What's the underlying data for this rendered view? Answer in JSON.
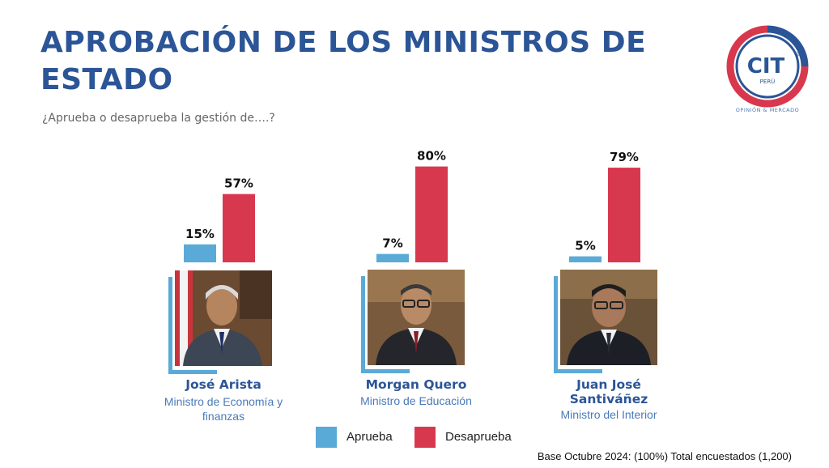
{
  "title": "APROBACIÓN DE LOS MINISTROS DE ESTADO",
  "subtitle": "¿Aprueba o desaprueba la gestión de….?",
  "logo": {
    "text": "CIT",
    "sub": "PERÚ",
    "registered": "®",
    "tagline": "OPINIÓN & MERCADO",
    "colors": {
      "red": "#d8384e",
      "blue": "#2b5597"
    }
  },
  "colors": {
    "aprueba": "#5aaad8",
    "desaprueba": "#d8384e",
    "accent": "#2b5597"
  },
  "chart_data": {
    "type": "bar",
    "categories": [
      "José Arista",
      "Morgan Quero",
      "Juan José Santiváñez"
    ],
    "series": [
      {
        "name": "Aprueba",
        "values": [
          15,
          7,
          5
        ],
        "labels": [
          "15%",
          "7%",
          "5%"
        ]
      },
      {
        "name": "Desaprueba",
        "values": [
          57,
          80,
          79
        ],
        "labels": [
          "57%",
          "80%",
          "79%"
        ]
      }
    ],
    "ylim": [
      0,
      100
    ],
    "title": "",
    "xlabel": "",
    "ylabel": "",
    "legend_position": "bottom"
  },
  "ministers": [
    {
      "name": "José Arista",
      "role": "Ministro de Economía y finanzas"
    },
    {
      "name": "Morgan Quero",
      "role": "Ministro de Educación"
    },
    {
      "name": "Juan José Santiváñez",
      "role": "Ministro del Interior"
    }
  ],
  "legend": [
    {
      "label": "Aprueba",
      "icon": "blue-square"
    },
    {
      "label": "Desaprueba",
      "icon": "red-square"
    }
  ],
  "footnote": "Base Octubre 2024: (100%) Total encuestados (1,200)"
}
